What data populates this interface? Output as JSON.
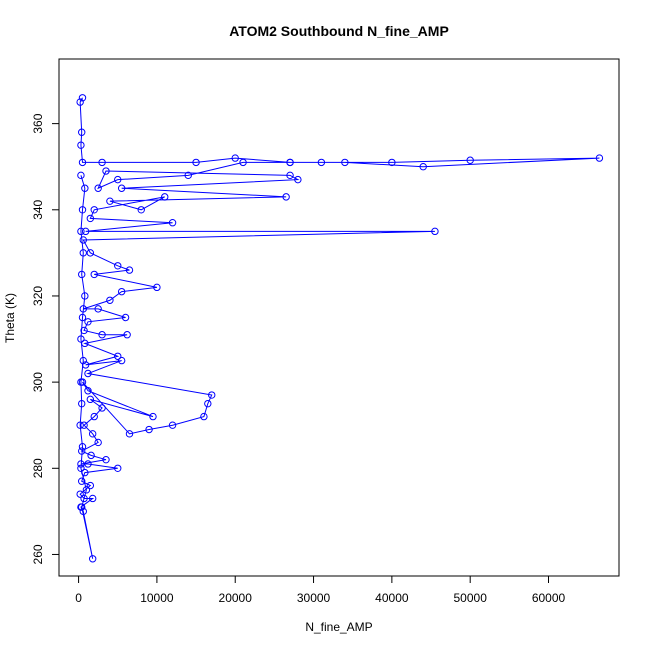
{
  "chart_data": {
    "type": "line",
    "title": "ATOM2 Southbound N_fine_AMP",
    "xlabel": "N_fine_AMP",
    "ylabel": "Theta (K)",
    "xlim": [
      -2500,
      69000
    ],
    "ylim": [
      255,
      375
    ],
    "xticks": [
      0,
      10000,
      20000,
      30000,
      40000,
      50000,
      60000
    ],
    "yticks": [
      260,
      280,
      300,
      320,
      340,
      360
    ],
    "grid": false,
    "legend": "none",
    "line_color": "#0000ff",
    "marker": "open-circle",
    "series": [
      {
        "values": [
          [
            500,
            366
          ],
          [
            200,
            365
          ],
          [
            400,
            358
          ],
          [
            300,
            355
          ],
          [
            500,
            351
          ],
          [
            3000,
            351
          ],
          [
            15000,
            351
          ],
          [
            20000,
            352
          ],
          [
            27000,
            351
          ],
          [
            31000,
            351
          ],
          [
            40000,
            351
          ],
          [
            50000,
            351.5
          ],
          [
            66500,
            352
          ],
          [
            44000,
            350
          ],
          [
            34000,
            351
          ],
          [
            27000,
            351
          ],
          [
            21000,
            351
          ],
          [
            14000,
            348
          ],
          [
            5000,
            347
          ],
          [
            2500,
            345
          ],
          [
            3500,
            349
          ],
          [
            27000,
            348
          ],
          [
            28000,
            347
          ],
          [
            5500,
            345
          ],
          [
            26500,
            343
          ],
          [
            4000,
            342
          ],
          [
            8000,
            340
          ],
          [
            11000,
            343
          ],
          [
            2000,
            340
          ],
          [
            1500,
            338
          ],
          [
            12000,
            337
          ],
          [
            900,
            335
          ],
          [
            45500,
            335
          ],
          [
            600,
            333
          ],
          [
            1500,
            330
          ],
          [
            5000,
            327
          ],
          [
            6500,
            326
          ],
          [
            2000,
            325
          ],
          [
            10000,
            322
          ],
          [
            5500,
            321
          ],
          [
            4000,
            319
          ],
          [
            600,
            317
          ],
          [
            2500,
            317
          ],
          [
            6000,
            315
          ],
          [
            1200,
            314
          ],
          [
            700,
            312
          ],
          [
            3000,
            311
          ],
          [
            6200,
            311
          ],
          [
            800,
            309
          ],
          [
            5000,
            306
          ],
          [
            900,
            304
          ],
          [
            5500,
            305
          ],
          [
            1200,
            302
          ],
          [
            17000,
            297
          ],
          [
            16500,
            295
          ],
          [
            16000,
            292
          ],
          [
            12000,
            290
          ],
          [
            9000,
            289
          ],
          [
            6500,
            288
          ],
          [
            500,
            300
          ],
          [
            1200,
            298
          ],
          [
            9500,
            292
          ],
          [
            1500,
            296
          ],
          [
            3000,
            294
          ],
          [
            2000,
            292
          ],
          [
            700,
            290
          ],
          [
            1800,
            288
          ],
          [
            2500,
            286
          ],
          [
            400,
            284
          ],
          [
            1600,
            283
          ],
          [
            3500,
            282
          ],
          [
            300,
            281
          ],
          [
            1200,
            281
          ],
          [
            5000,
            280
          ],
          [
            800,
            279
          ],
          [
            400,
            277
          ],
          [
            1500,
            276
          ],
          [
            200,
            274
          ],
          [
            700,
            273
          ],
          [
            1800,
            273
          ],
          [
            300,
            271
          ],
          [
            600,
            270
          ],
          [
            1800,
            259
          ],
          [
            400,
            271
          ],
          [
            1000,
            275
          ],
          [
            300,
            280
          ],
          [
            500,
            285
          ],
          [
            200,
            290
          ],
          [
            400,
            295
          ],
          [
            300,
            300
          ],
          [
            600,
            305
          ],
          [
            300,
            310
          ],
          [
            500,
            315
          ],
          [
            800,
            320
          ],
          [
            400,
            325
          ],
          [
            600,
            330
          ],
          [
            300,
            335
          ],
          [
            500,
            340
          ],
          [
            800,
            345
          ],
          [
            300,
            348
          ]
        ]
      }
    ]
  }
}
